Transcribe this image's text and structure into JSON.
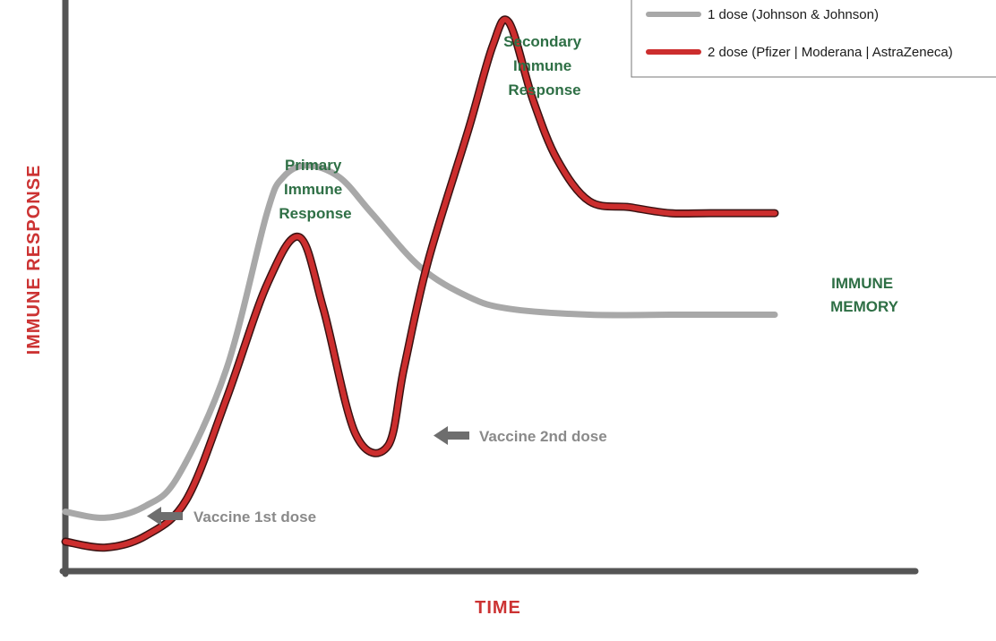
{
  "chart_data": {
    "type": "line",
    "xlabel": "TIME",
    "ylabel": "IMMUNE RESPONSE",
    "grid": false,
    "legend_position": "top-right",
    "x_ticks_shown": false,
    "y_ticks_shown": false,
    "xlim": [
      0,
      100
    ],
    "ylim": [
      0,
      100
    ],
    "series": [
      {
        "name": "1 dose (Johnson & Johnson)",
        "color": "#a8a8a8",
        "x": [
          0,
          5,
          10,
          14,
          20,
          25,
          27,
          30,
          34,
          38,
          44,
          50,
          55,
          65,
          75,
          80,
          88
        ],
        "y": [
          20,
          19,
          21,
          26,
          44,
          70,
          76,
          78,
          76,
          70,
          61,
          56,
          54,
          53,
          53,
          53,
          53
        ]
      },
      {
        "name": "2 dose (Pfizer | Moderana | AstraZeneca)",
        "color": "#cc2e2e",
        "x": [
          0,
          5,
          10,
          15,
          20,
          25,
          29,
          32,
          36,
          40,
          42,
          45,
          50,
          53,
          55,
          58,
          61,
          65,
          70,
          75,
          80,
          88
        ],
        "y": [
          15,
          14,
          16,
          22,
          39,
          58,
          66,
          54,
          33,
          31,
          44,
          62,
          84,
          98,
          102,
          89,
          79,
          72,
          71,
          70,
          70,
          70
        ]
      }
    ],
    "annotations": {
      "primary": [
        "Primary",
        "Immune",
        "Response"
      ],
      "secondary": [
        "Secondary",
        "Immune",
        "Response"
      ],
      "memory": [
        "IMMUNE",
        "MEMORY"
      ],
      "dose1": "Vaccine 1st dose",
      "dose2": "Vaccine 2nd dose"
    }
  },
  "colors": {
    "axis": "#555555",
    "annotation_green": "#2e6f45",
    "annotation_gray": "#8a8a8a",
    "axis_title": "#cc3333",
    "arrow": "#6e6e6e"
  }
}
